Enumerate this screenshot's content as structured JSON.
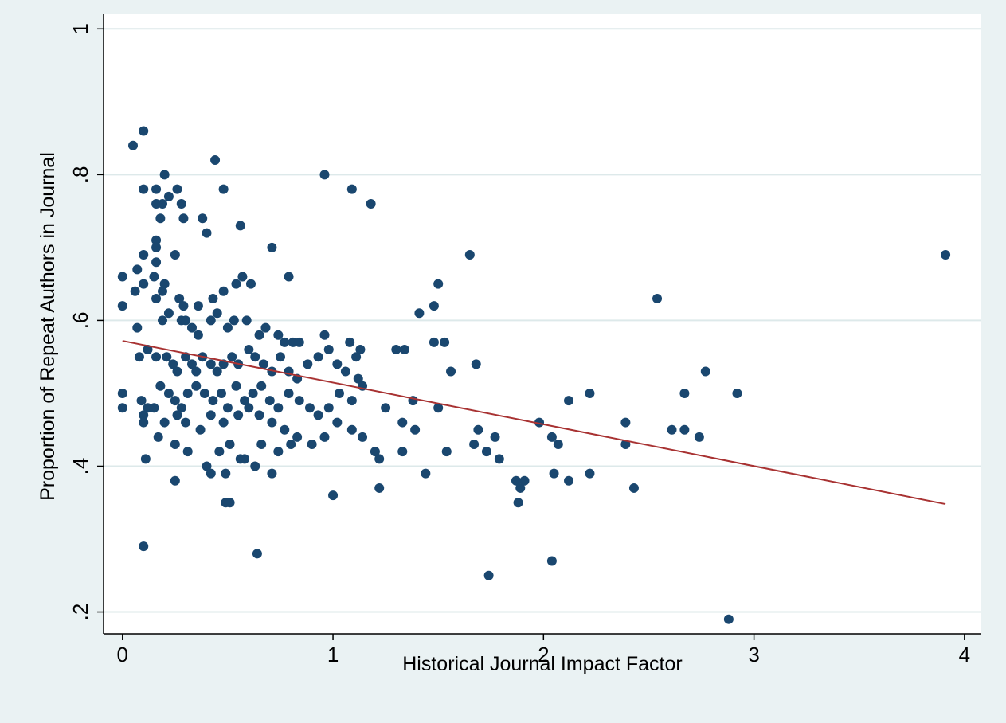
{
  "chart_data": {
    "type": "scatter",
    "title": "",
    "xlabel": "Historical Journal Impact Factor",
    "ylabel": "Proportion of Repeat Authors in Journal",
    "xlim": [
      -0.09,
      4.08
    ],
    "ylim": [
      0.17,
      1.02
    ],
    "x_ticks": [
      0,
      1,
      2,
      3,
      4
    ],
    "x_tick_labels": [
      "0",
      "1",
      "2",
      "3",
      "4"
    ],
    "y_ticks": [
      0.2,
      0.4,
      0.6,
      0.8,
      1
    ],
    "y_tick_labels": [
      ".2",
      ".4",
      ".6",
      ".8",
      "1"
    ],
    "grid": "horizontal",
    "legend": "none",
    "colors": {
      "outer_background": "#eaf2f3",
      "plot_background": "#ffffff",
      "gridline": "#dde9ea",
      "marker": "#1a476f",
      "fit_line": "#a83232"
    },
    "series": [
      {
        "type": "scatter",
        "points": [
          [
            0.05,
            0.84
          ],
          [
            0.1,
            0.86
          ],
          [
            0.1,
            0.78
          ],
          [
            0.16,
            0.78
          ],
          [
            0.2,
            0.8
          ],
          [
            0.22,
            0.77
          ],
          [
            0.26,
            0.78
          ],
          [
            0.28,
            0.76
          ],
          [
            0.19,
            0.76
          ],
          [
            0.16,
            0.76
          ],
          [
            0.18,
            0.74
          ],
          [
            0.29,
            0.74
          ],
          [
            0.38,
            0.74
          ],
          [
            0.4,
            0.72
          ],
          [
            0.44,
            0.82
          ],
          [
            0.48,
            0.78
          ],
          [
            0.56,
            0.73
          ],
          [
            0.71,
            0.7
          ],
          [
            0.96,
            0.8
          ],
          [
            1.09,
            0.78
          ],
          [
            1.18,
            0.76
          ],
          [
            1.65,
            0.69
          ],
          [
            3.91,
            0.69
          ],
          [
            0.16,
            0.71
          ],
          [
            0.16,
            0.7
          ],
          [
            0.1,
            0.69
          ],
          [
            0.07,
            0.67
          ],
          [
            0.16,
            0.68
          ],
          [
            0.25,
            0.69
          ],
          [
            0.0,
            0.66
          ],
          [
            0.06,
            0.64
          ],
          [
            0.1,
            0.65
          ],
          [
            0.15,
            0.66
          ],
          [
            0.2,
            0.65
          ],
          [
            0.16,
            0.63
          ],
          [
            0.19,
            0.64
          ],
          [
            0.0,
            0.62
          ],
          [
            0.27,
            0.63
          ],
          [
            0.29,
            0.62
          ],
          [
            0.36,
            0.62
          ],
          [
            0.43,
            0.63
          ],
          [
            0.48,
            0.64
          ],
          [
            0.54,
            0.65
          ],
          [
            0.57,
            0.66
          ],
          [
            0.61,
            0.65
          ],
          [
            0.79,
            0.66
          ],
          [
            1.5,
            0.65
          ],
          [
            1.48,
            0.62
          ],
          [
            1.41,
            0.61
          ],
          [
            2.54,
            0.63
          ],
          [
            0.07,
            0.59
          ],
          [
            0.19,
            0.6
          ],
          [
            0.22,
            0.61
          ],
          [
            0.28,
            0.6
          ],
          [
            0.3,
            0.6
          ],
          [
            0.33,
            0.59
          ],
          [
            0.36,
            0.58
          ],
          [
            0.42,
            0.6
          ],
          [
            0.45,
            0.61
          ],
          [
            0.5,
            0.59
          ],
          [
            0.53,
            0.6
          ],
          [
            0.59,
            0.6
          ],
          [
            0.65,
            0.58
          ],
          [
            0.68,
            0.59
          ],
          [
            0.74,
            0.58
          ],
          [
            0.77,
            0.57
          ],
          [
            0.81,
            0.57
          ],
          [
            0.84,
            0.57
          ],
          [
            0.96,
            0.58
          ],
          [
            1.08,
            0.57
          ],
          [
            1.13,
            0.56
          ],
          [
            1.48,
            0.57
          ],
          [
            1.53,
            0.57
          ],
          [
            1.3,
            0.56
          ],
          [
            1.34,
            0.56
          ],
          [
            1.68,
            0.54
          ],
          [
            0.08,
            0.55
          ],
          [
            0.12,
            0.56
          ],
          [
            0.16,
            0.55
          ],
          [
            0.21,
            0.55
          ],
          [
            0.24,
            0.54
          ],
          [
            0.26,
            0.53
          ],
          [
            0.3,
            0.55
          ],
          [
            0.33,
            0.54
          ],
          [
            0.35,
            0.53
          ],
          [
            0.38,
            0.55
          ],
          [
            0.42,
            0.54
          ],
          [
            0.45,
            0.53
          ],
          [
            0.48,
            0.54
          ],
          [
            0.52,
            0.55
          ],
          [
            0.55,
            0.54
          ],
          [
            0.6,
            0.56
          ],
          [
            0.63,
            0.55
          ],
          [
            0.67,
            0.54
          ],
          [
            0.71,
            0.53
          ],
          [
            0.75,
            0.55
          ],
          [
            0.79,
            0.53
          ],
          [
            0.83,
            0.52
          ],
          [
            0.88,
            0.54
          ],
          [
            0.93,
            0.55
          ],
          [
            0.98,
            0.56
          ],
          [
            1.02,
            0.54
          ],
          [
            1.06,
            0.53
          ],
          [
            1.11,
            0.55
          ],
          [
            1.12,
            0.52
          ],
          [
            1.14,
            0.51
          ],
          [
            1.56,
            0.53
          ],
          [
            2.77,
            0.53
          ],
          [
            0.0,
            0.5
          ],
          [
            0.09,
            0.49
          ],
          [
            0.12,
            0.48
          ],
          [
            0.18,
            0.51
          ],
          [
            0.22,
            0.5
          ],
          [
            0.25,
            0.49
          ],
          [
            0.28,
            0.48
          ],
          [
            0.31,
            0.5
          ],
          [
            0.35,
            0.51
          ],
          [
            0.39,
            0.5
          ],
          [
            0.43,
            0.49
          ],
          [
            0.47,
            0.5
          ],
          [
            0.5,
            0.48
          ],
          [
            0.54,
            0.51
          ],
          [
            0.58,
            0.49
          ],
          [
            0.62,
            0.5
          ],
          [
            0.66,
            0.51
          ],
          [
            0.7,
            0.49
          ],
          [
            0.74,
            0.48
          ],
          [
            0.79,
            0.5
          ],
          [
            0.84,
            0.49
          ],
          [
            0.89,
            0.48
          ],
          [
            0.93,
            0.47
          ],
          [
            0.98,
            0.48
          ],
          [
            1.03,
            0.5
          ],
          [
            1.09,
            0.49
          ],
          [
            1.25,
            0.48
          ],
          [
            1.38,
            0.49
          ],
          [
            1.5,
            0.48
          ],
          [
            2.12,
            0.49
          ],
          [
            2.22,
            0.5
          ],
          [
            2.67,
            0.5
          ],
          [
            2.92,
            0.5
          ],
          [
            0.0,
            0.48
          ],
          [
            0.1,
            0.47
          ],
          [
            0.15,
            0.48
          ],
          [
            0.2,
            0.46
          ],
          [
            0.26,
            0.47
          ],
          [
            0.3,
            0.46
          ],
          [
            0.37,
            0.45
          ],
          [
            0.42,
            0.47
          ],
          [
            0.48,
            0.46
          ],
          [
            0.55,
            0.47
          ],
          [
            0.6,
            0.48
          ],
          [
            0.65,
            0.47
          ],
          [
            0.71,
            0.46
          ],
          [
            0.77,
            0.45
          ],
          [
            0.83,
            0.44
          ],
          [
            0.9,
            0.43
          ],
          [
            0.96,
            0.44
          ],
          [
            1.02,
            0.46
          ],
          [
            1.09,
            0.45
          ],
          [
            1.14,
            0.44
          ],
          [
            1.33,
            0.46
          ],
          [
            1.39,
            0.45
          ],
          [
            1.98,
            0.46
          ],
          [
            2.04,
            0.44
          ],
          [
            2.07,
            0.43
          ],
          [
            2.39,
            0.43
          ],
          [
            2.39,
            0.46
          ],
          [
            2.61,
            0.45
          ],
          [
            2.67,
            0.45
          ],
          [
            2.74,
            0.44
          ],
          [
            0.1,
            0.46
          ],
          [
            0.17,
            0.44
          ],
          [
            0.25,
            0.43
          ],
          [
            0.31,
            0.42
          ],
          [
            0.4,
            0.4
          ],
          [
            0.46,
            0.42
          ],
          [
            0.51,
            0.43
          ],
          [
            0.58,
            0.41
          ],
          [
            0.66,
            0.43
          ],
          [
            0.74,
            0.42
          ],
          [
            0.8,
            0.43
          ],
          [
            1.2,
            0.42
          ],
          [
            1.22,
            0.41
          ],
          [
            1.33,
            0.42
          ],
          [
            1.54,
            0.42
          ],
          [
            1.67,
            0.43
          ],
          [
            1.69,
            0.45
          ],
          [
            1.73,
            0.42
          ],
          [
            1.77,
            0.44
          ],
          [
            1.79,
            0.41
          ],
          [
            0.11,
            0.41
          ],
          [
            0.25,
            0.38
          ],
          [
            0.42,
            0.39
          ],
          [
            0.49,
            0.39
          ],
          [
            0.56,
            0.41
          ],
          [
            0.63,
            0.4
          ],
          [
            0.71,
            0.39
          ],
          [
            1.44,
            0.39
          ],
          [
            1.87,
            0.38
          ],
          [
            1.89,
            0.37
          ],
          [
            1.91,
            0.38
          ],
          [
            2.05,
            0.39
          ],
          [
            2.12,
            0.38
          ],
          [
            2.22,
            0.39
          ],
          [
            0.49,
            0.35
          ],
          [
            0.51,
            0.35
          ],
          [
            1.0,
            0.36
          ],
          [
            1.22,
            0.37
          ],
          [
            1.88,
            0.35
          ],
          [
            2.43,
            0.37
          ],
          [
            0.1,
            0.29
          ],
          [
            0.64,
            0.28
          ],
          [
            1.74,
            0.25
          ],
          [
            2.04,
            0.27
          ],
          [
            2.88,
            0.19
          ]
        ]
      },
      {
        "type": "line",
        "name": "",
        "x": [
          0,
          3.91
        ],
        "y": [
          0.572,
          0.348
        ]
      }
    ]
  }
}
